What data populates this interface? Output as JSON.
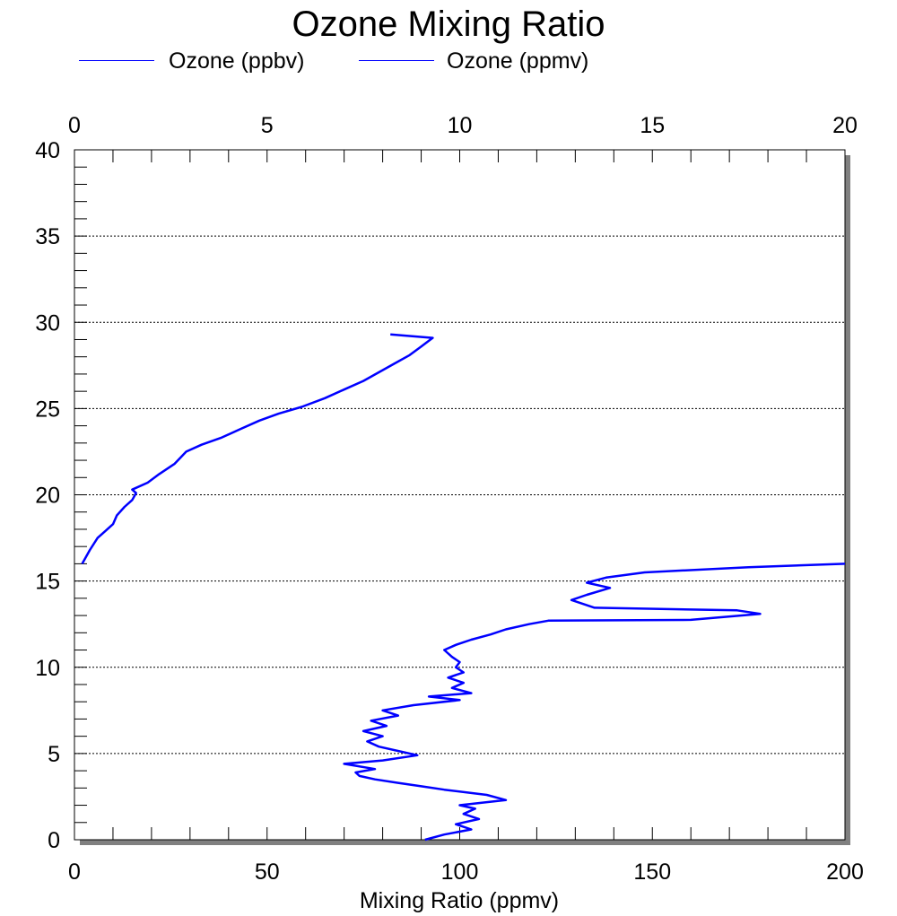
{
  "chart_data": {
    "type": "line",
    "title": "Ozone Mixing Ratio",
    "xlabel": "Mixing Ratio (ppmv)",
    "ylabel": "",
    "x_bottom_range": [
      0,
      200
    ],
    "x_bottom_ticks": [
      "0",
      "50",
      "100",
      "150",
      "200"
    ],
    "x_top_range": [
      0,
      20
    ],
    "x_top_ticks": [
      "0",
      "5",
      "10",
      "15",
      "20"
    ],
    "ylim": [
      0,
      40
    ],
    "y_ticks": [
      "0",
      "5",
      "10",
      "15",
      "20",
      "25",
      "30",
      "35",
      "40"
    ],
    "grid": "horizontal dotted",
    "legend_position": "top",
    "legend": [
      "Ozone (ppbv)",
      "Ozone (ppmv)"
    ],
    "line_color": "#0000ff",
    "series": [
      {
        "name": "Ozone (ppbv)",
        "axis": "bottom",
        "points": [
          [
            91,
            0.0
          ],
          [
            96,
            0.3
          ],
          [
            103,
            0.6
          ],
          [
            99,
            0.9
          ],
          [
            105,
            1.2
          ],
          [
            101,
            1.5
          ],
          [
            104,
            1.8
          ],
          [
            100,
            2.0
          ],
          [
            112,
            2.3
          ],
          [
            107,
            2.6
          ],
          [
            96,
            2.9
          ],
          [
            90,
            3.1
          ],
          [
            84,
            3.3
          ],
          [
            78,
            3.5
          ],
          [
            74,
            3.7
          ],
          [
            73,
            3.9
          ],
          [
            78,
            4.1
          ],
          [
            70,
            4.4
          ],
          [
            80,
            4.6
          ],
          [
            89,
            4.9
          ],
          [
            85,
            5.1
          ],
          [
            79,
            5.4
          ],
          [
            76,
            5.7
          ],
          [
            80,
            6.0
          ],
          [
            75,
            6.3
          ],
          [
            81,
            6.6
          ],
          [
            77,
            6.9
          ],
          [
            84,
            7.2
          ],
          [
            80,
            7.5
          ],
          [
            88,
            7.8
          ],
          [
            100,
            8.1
          ],
          [
            92,
            8.3
          ],
          [
            103,
            8.5
          ],
          [
            98,
            8.8
          ],
          [
            101,
            9.1
          ],
          [
            97,
            9.4
          ],
          [
            101,
            9.7
          ],
          [
            99,
            10.0
          ],
          [
            100,
            10.3
          ],
          [
            98,
            10.6
          ],
          [
            96,
            11.0
          ],
          [
            99,
            11.3
          ],
          [
            103,
            11.6
          ],
          [
            108,
            11.9
          ],
          [
            112,
            12.2
          ],
          [
            118,
            12.5
          ],
          [
            123,
            12.7
          ],
          [
            160,
            12.75
          ],
          [
            178,
            13.1
          ],
          [
            172,
            13.3
          ],
          [
            135,
            13.45
          ],
          [
            129,
            13.9
          ],
          [
            133,
            14.2
          ],
          [
            139,
            14.6
          ],
          [
            133,
            14.9
          ],
          [
            138,
            15.2
          ],
          [
            148,
            15.5
          ],
          [
            175,
            15.8
          ],
          [
            200,
            16.0
          ]
        ]
      },
      {
        "name": "Ozone (ppmv)",
        "axis": "top",
        "points": [
          [
            0.2,
            16.0
          ],
          [
            0.4,
            16.8
          ],
          [
            0.6,
            17.5
          ],
          [
            0.8,
            17.9
          ],
          [
            1.0,
            18.3
          ],
          [
            1.1,
            18.8
          ],
          [
            1.3,
            19.3
          ],
          [
            1.5,
            19.7
          ],
          [
            1.6,
            20.1
          ],
          [
            1.5,
            20.3
          ],
          [
            1.9,
            20.7
          ],
          [
            2.2,
            21.2
          ],
          [
            2.6,
            21.8
          ],
          [
            2.9,
            22.5
          ],
          [
            3.3,
            22.9
          ],
          [
            3.8,
            23.3
          ],
          [
            4.3,
            23.8
          ],
          [
            4.8,
            24.3
          ],
          [
            5.3,
            24.7
          ],
          [
            5.9,
            25.1
          ],
          [
            6.5,
            25.6
          ],
          [
            7.0,
            26.1
          ],
          [
            7.5,
            26.6
          ],
          [
            7.9,
            27.1
          ],
          [
            8.3,
            27.6
          ],
          [
            8.7,
            28.1
          ],
          [
            9.0,
            28.6
          ],
          [
            9.3,
            29.1
          ],
          [
            8.2,
            29.3
          ]
        ]
      }
    ]
  }
}
